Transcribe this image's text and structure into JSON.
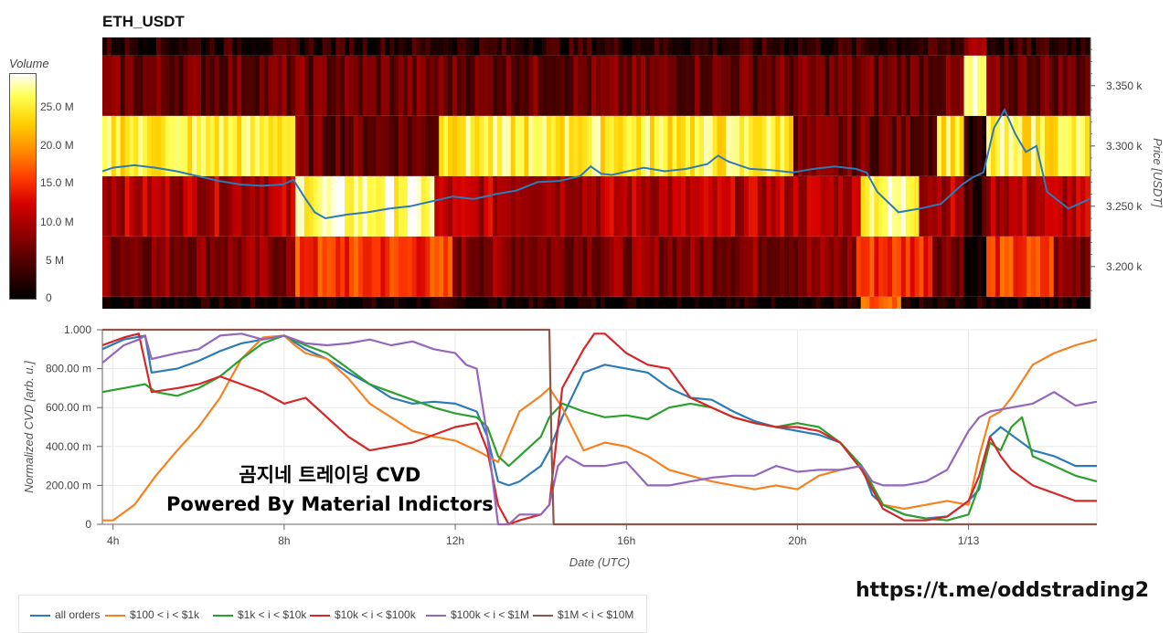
{
  "title": "ETH_USDT",
  "colorbar": {
    "title": "Volume",
    "ticks": [
      "25.0 M",
      "20.0 M",
      "15.0 M",
      "10.0 M",
      "5 M",
      "0"
    ],
    "tick_values": [
      25,
      20,
      15,
      10,
      5,
      0
    ],
    "max": 30
  },
  "watermark": {
    "line1": "곰지네 트레이딩 CVD",
    "line2": "Powered By Material Indictors"
  },
  "link": "https://t.me/oddstrading2",
  "chart_data": [
    {
      "type": "heatmap",
      "ylabel": "Price [USDT]",
      "y_ticks": [
        "3.350 k",
        "3.300 k",
        "3.250 k",
        "3.200 k"
      ],
      "y_tick_values": [
        3350,
        3300,
        3250,
        3200
      ],
      "ylim": [
        3165,
        3390
      ],
      "price_bands": [
        {
          "low": 3165,
          "high": 3175,
          "level": "very low"
        },
        {
          "low": 3175,
          "high": 3225,
          "level": "medium"
        },
        {
          "low": 3225,
          "high": 3275,
          "level": "high (shifts over time)"
        },
        {
          "low": 3275,
          "high": 3325,
          "level": "high"
        },
        {
          "low": 3325,
          "high": 3375,
          "level": "medium"
        },
        {
          "low": 3375,
          "high": 3390,
          "level": "low"
        }
      ],
      "price_line_color": "#2d7bb6",
      "price_series": {
        "x": [
          3.75,
          4.0,
          4.25,
          4.5,
          5.0,
          5.5,
          6.0,
          6.5,
          7.0,
          7.5,
          8.0,
          8.25,
          8.5,
          8.75,
          9.0,
          9.5,
          10.0,
          10.5,
          11.0,
          11.5,
          12.0,
          12.5,
          13.0,
          13.5,
          14.0,
          14.5,
          15.0,
          15.25,
          15.5,
          15.75,
          16.0,
          16.5,
          17.0,
          17.5,
          18.0,
          18.25,
          18.5,
          19.0,
          19.5,
          20.0,
          20.5,
          21.0,
          21.5,
          21.75,
          22.0,
          22.5,
          23.0,
          23.5,
          24.0,
          24.25,
          24.5,
          24.75,
          25.0,
          25.25,
          25.5,
          25.75,
          26.0,
          26.25,
          26.5,
          26.75,
          27.0
        ],
        "y": [
          3279,
          3282,
          3283,
          3284,
          3282,
          3279,
          3275,
          3271,
          3268,
          3267,
          3268,
          3272,
          3258,
          3245,
          3240,
          3243,
          3245,
          3248,
          3250,
          3254,
          3258,
          3256,
          3260,
          3263,
          3270,
          3271,
          3275,
          3283,
          3277,
          3276,
          3278,
          3282,
          3279,
          3281,
          3285,
          3292,
          3287,
          3281,
          3280,
          3278,
          3281,
          3283,
          3281,
          3278,
          3262,
          3245,
          3248,
          3252,
          3268,
          3274,
          3278,
          3315,
          3330,
          3310,
          3295,
          3300,
          3262,
          3255,
          3248,
          3252,
          3256
        ]
      }
    },
    {
      "type": "line",
      "xlabel": "Date (UTC)",
      "ylabel": "Normalized CVD [arb. u.]",
      "x_ticks": [
        "4h",
        "8h",
        "12h",
        "16h",
        "20h",
        "1/13"
      ],
      "x_tick_values": [
        4,
        8,
        12,
        16,
        20,
        24
      ],
      "xlim": [
        3.75,
        27.0
      ],
      "y_ticks": [
        "1.000",
        "800.00 m",
        "600.00 m",
        "400.00 m",
        "200.00 m",
        "0"
      ],
      "y_tick_values": [
        1.0,
        0.8,
        0.6,
        0.4,
        0.2,
        0
      ],
      "ylim": [
        0,
        1.0
      ],
      "grid": true,
      "legend_position": "bottom",
      "series": [
        {
          "name": "all orders",
          "color": "#2c7bb6",
          "x": [
            3.75,
            4.25,
            4.75,
            4.9,
            5.5,
            6.0,
            6.5,
            7.0,
            7.5,
            8.0,
            8.5,
            9.0,
            9.5,
            10.0,
            10.5,
            11.0,
            11.5,
            12.0,
            12.5,
            12.75,
            13.0,
            13.25,
            13.5,
            14.0,
            14.2,
            14.5,
            15.0,
            15.5,
            16.0,
            16.5,
            17.0,
            17.5,
            18.0,
            18.5,
            19.0,
            19.5,
            20.0,
            20.5,
            21.0,
            21.5,
            21.75,
            22.0,
            22.5,
            23.0,
            23.5,
            24.0,
            24.25,
            24.5,
            24.75,
            25.0,
            25.5,
            26.0,
            26.5,
            27.0
          ],
          "y": [
            0.9,
            0.95,
            0.97,
            0.78,
            0.8,
            0.84,
            0.89,
            0.93,
            0.95,
            0.97,
            0.9,
            0.85,
            0.78,
            0.72,
            0.65,
            0.62,
            0.63,
            0.62,
            0.58,
            0.45,
            0.22,
            0.2,
            0.22,
            0.3,
            0.38,
            0.55,
            0.78,
            0.82,
            0.8,
            0.78,
            0.7,
            0.65,
            0.64,
            0.58,
            0.53,
            0.5,
            0.48,
            0.46,
            0.42,
            0.3,
            0.15,
            0.1,
            0.05,
            0.03,
            0.04,
            0.12,
            0.18,
            0.45,
            0.5,
            0.46,
            0.38,
            0.35,
            0.3,
            0.3
          ]
        },
        {
          "name": "$100 < i < $1k",
          "color": "#f58220",
          "x": [
            3.75,
            4.0,
            4.5,
            5.0,
            5.5,
            6.0,
            6.5,
            7.0,
            7.5,
            8.0,
            8.25,
            8.5,
            9.0,
            9.5,
            10.0,
            10.5,
            11.0,
            11.5,
            12.0,
            12.5,
            13.0,
            13.25,
            13.5,
            14.0,
            14.2,
            14.5,
            15.0,
            15.5,
            16.0,
            16.5,
            17.0,
            17.5,
            18.0,
            18.5,
            19.0,
            19.5,
            20.0,
            20.5,
            21.0,
            21.5,
            22.0,
            22.5,
            23.0,
            23.5,
            24.0,
            24.25,
            24.5,
            24.75,
            25.0,
            25.5,
            26.0,
            26.5,
            27.0
          ],
          "y": [
            0.02,
            0.02,
            0.1,
            0.25,
            0.38,
            0.5,
            0.65,
            0.85,
            0.96,
            0.97,
            0.92,
            0.88,
            0.85,
            0.75,
            0.62,
            0.55,
            0.48,
            0.45,
            0.43,
            0.38,
            0.32,
            0.45,
            0.58,
            0.66,
            0.7,
            0.6,
            0.38,
            0.42,
            0.4,
            0.35,
            0.28,
            0.25,
            0.22,
            0.2,
            0.18,
            0.2,
            0.18,
            0.25,
            0.28,
            0.3,
            0.1,
            0.08,
            0.1,
            0.12,
            0.1,
            0.35,
            0.55,
            0.58,
            0.65,
            0.82,
            0.88,
            0.92,
            0.95
          ]
        },
        {
          "name": "$1k < i < $10k",
          "color": "#2ca02c",
          "x": [
            3.75,
            4.25,
            4.75,
            5.0,
            5.5,
            6.0,
            6.5,
            7.0,
            7.5,
            8.0,
            8.5,
            9.0,
            9.5,
            10.0,
            10.5,
            11.0,
            11.5,
            12.0,
            12.5,
            12.75,
            13.0,
            13.25,
            13.5,
            14.0,
            14.2,
            14.5,
            15.0,
            15.5,
            16.0,
            16.5,
            17.0,
            17.5,
            18.0,
            18.5,
            19.0,
            19.5,
            20.0,
            20.5,
            21.0,
            21.5,
            22.0,
            22.5,
            23.0,
            23.5,
            24.0,
            24.25,
            24.5,
            24.75,
            25.0,
            25.25,
            25.5,
            26.0,
            26.5,
            27.0
          ],
          "y": [
            0.68,
            0.7,
            0.72,
            0.68,
            0.66,
            0.7,
            0.76,
            0.85,
            0.93,
            0.97,
            0.92,
            0.88,
            0.8,
            0.72,
            0.68,
            0.64,
            0.6,
            0.57,
            0.55,
            0.5,
            0.35,
            0.3,
            0.35,
            0.45,
            0.55,
            0.62,
            0.58,
            0.55,
            0.56,
            0.54,
            0.6,
            0.62,
            0.6,
            0.55,
            0.52,
            0.5,
            0.52,
            0.5,
            0.42,
            0.3,
            0.1,
            0.05,
            0.03,
            0.02,
            0.05,
            0.2,
            0.42,
            0.38,
            0.5,
            0.55,
            0.35,
            0.3,
            0.25,
            0.22
          ]
        },
        {
          "name": "$10k < i < $100k",
          "color": "#d62728",
          "x": [
            3.75,
            4.25,
            4.6,
            4.9,
            5.5,
            6.0,
            6.5,
            7.0,
            7.5,
            8.0,
            8.5,
            9.0,
            9.5,
            10.0,
            10.5,
            11.0,
            11.5,
            12.0,
            12.5,
            12.75,
            13.0,
            13.25,
            13.5,
            14.0,
            14.2,
            14.5,
            15.0,
            15.25,
            15.5,
            16.0,
            16.5,
            17.0,
            17.5,
            18.0,
            18.5,
            19.0,
            19.5,
            20.0,
            20.5,
            21.0,
            21.5,
            22.0,
            22.5,
            23.0,
            23.5,
            24.0,
            24.25,
            24.5,
            24.75,
            25.0,
            25.5,
            26.0,
            26.5,
            27.0
          ],
          "y": [
            0.92,
            0.96,
            0.98,
            0.68,
            0.7,
            0.72,
            0.76,
            0.72,
            0.68,
            0.62,
            0.65,
            0.55,
            0.45,
            0.38,
            0.4,
            0.42,
            0.46,
            0.5,
            0.52,
            0.38,
            0.1,
            0.0,
            0.02,
            0.05,
            0.1,
            0.7,
            0.9,
            0.98,
            0.98,
            0.88,
            0.82,
            0.8,
            0.65,
            0.6,
            0.55,
            0.52,
            0.5,
            0.5,
            0.48,
            0.42,
            0.28,
            0.08,
            0.02,
            0.02,
            0.04,
            0.12,
            0.25,
            0.45,
            0.35,
            0.28,
            0.2,
            0.16,
            0.12,
            0.12
          ]
        },
        {
          "name": "$100k < i < $1M",
          "color": "#9467bd",
          "x": [
            3.75,
            4.25,
            4.6,
            4.75,
            4.9,
            5.5,
            6.0,
            6.5,
            7.0,
            7.5,
            8.0,
            8.5,
            9.0,
            9.5,
            10.0,
            10.5,
            11.0,
            11.5,
            12.0,
            12.25,
            12.5,
            12.75,
            13.0,
            13.25,
            13.5,
            14.0,
            14.2,
            14.4,
            14.6,
            15.0,
            15.5,
            16.0,
            16.5,
            17.0,
            17.5,
            18.0,
            18.5,
            19.0,
            19.5,
            20.0,
            20.5,
            21.0,
            21.5,
            21.75,
            22.0,
            22.5,
            23.0,
            23.5,
            24.0,
            24.25,
            24.5,
            25.0,
            25.5,
            26.0,
            26.5,
            27.0
          ],
          "y": [
            0.83,
            0.92,
            0.95,
            0.97,
            0.85,
            0.88,
            0.9,
            0.97,
            0.98,
            0.95,
            0.97,
            0.93,
            0.92,
            0.93,
            0.95,
            0.92,
            0.94,
            0.9,
            0.88,
            0.82,
            0.8,
            0.45,
            0.0,
            0.0,
            0.05,
            0.05,
            0.1,
            0.3,
            0.35,
            0.3,
            0.3,
            0.32,
            0.2,
            0.2,
            0.22,
            0.24,
            0.25,
            0.25,
            0.3,
            0.27,
            0.28,
            0.28,
            0.3,
            0.22,
            0.2,
            0.2,
            0.22,
            0.28,
            0.48,
            0.55,
            0.58,
            0.6,
            0.62,
            0.68,
            0.61,
            0.63
          ]
        },
        {
          "name": "$1M < i < $10M",
          "color": "#8c564b",
          "x": [
            3.75,
            14.2,
            14.25,
            14.3,
            27.0
          ],
          "y": [
            1.0,
            1.0,
            0.4,
            0.0,
            0.0
          ]
        }
      ]
    }
  ]
}
